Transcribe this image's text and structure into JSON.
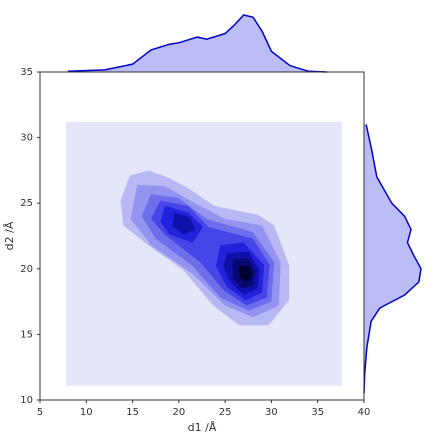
{
  "chart_data": {
    "type": "kde2d",
    "xlabel": "d1 /Å",
    "ylabel": "d2 /Å",
    "xlim": [
      5,
      40
    ],
    "ylim": [
      10,
      35
    ],
    "xticks": [
      5,
      10,
      15,
      20,
      25,
      30,
      35,
      40
    ],
    "yticks": [
      10,
      15,
      20,
      25,
      30,
      35
    ],
    "levels": [
      {
        "color": "#e6e6fa",
        "polygons": [
          {
            "x": [
              7.8,
              37.6,
              37.6,
              7.8
            ],
            "y": [
              11.1,
              11.1,
              31.2,
              31.2
            ]
          }
        ]
      },
      {
        "color": "#b8b8f4",
        "polygons": [
          {
            "x": [
              14.7,
              16.8,
              19,
              21.1,
              23.8,
              28.6,
              30.3,
              31.9,
              31.9,
              29.7,
              26.5,
              23.7,
              20.5,
              16.7,
              14,
              13.7
            ],
            "y": [
              27.1,
              27.5,
              26.9,
              26.1,
              24.8,
              24.1,
              23.3,
              20.3,
              17.6,
              15.7,
              15.7,
              17.2,
              19.9,
              21.8,
              23.3,
              25.2
            ]
          }
        ]
      },
      {
        "color": "#9494f0",
        "polygons": [
          {
            "x": [
              15.5,
              18.5,
              22,
              25,
              29,
              31,
              30.8,
              28,
              25,
              21.5,
              17,
              14.8
            ],
            "y": [
              26.4,
              26.3,
              24.9,
              23.8,
              23.3,
              20.5,
              17.2,
              16.3,
              17.2,
              19.6,
              21.8,
              23.8
            ]
          }
        ]
      },
      {
        "color": "#6e6eec",
        "polygons": [
          {
            "x": [
              17,
              20,
              23,
              28,
              30.3,
              30,
              27.5,
              24.5,
              21.5,
              17.5,
              16
            ],
            "y": [
              25.7,
              25.4,
              23.8,
              22.8,
              20.5,
              17.5,
              16.8,
              17.8,
              20.2,
              22.3,
              24
            ]
          }
        ]
      },
      {
        "color": "#4646e8",
        "polygons": [
          {
            "x": [
              18,
              21,
              23.2,
              28,
              29.8,
              29.5,
              27.3,
              24.8,
              22.3,
              18.5,
              17
            ],
            "y": [
              25.2,
              24.8,
              23.2,
              22.3,
              20.3,
              17.8,
              17.2,
              18.4,
              20.5,
              22.6,
              23.8
            ]
          }
        ]
      },
      {
        "color": "#2222dc",
        "polygons": [
          {
            "x": [
              18.5,
              21,
              22.6,
              21.5,
              19,
              18
            ],
            "y": [
              24.8,
              24.3,
              23.2,
              22,
              22.6,
              23.6
            ]
          },
          {
            "x": [
              24.5,
              27,
              29.2,
              29,
              27.2,
              25.2,
              24
            ],
            "y": [
              21.8,
              22,
              20.3,
              18.2,
              17.6,
              18.6,
              20.2
            ]
          }
        ]
      },
      {
        "color": "#1010aa",
        "polygons": [
          {
            "x": [
              19.5,
              21.2,
              21.8,
              20.5,
              19.3
            ],
            "y": [
              24.3,
              23.9,
              23,
              22.6,
              23.3
            ]
          },
          {
            "x": [
              25.2,
              27.5,
              28.7,
              28.5,
              27,
              25.5,
              24.8
            ],
            "y": [
              21.2,
              21.3,
              20,
              18.5,
              18,
              19,
              20.2
            ]
          }
        ]
      },
      {
        "color": "#080872",
        "polygons": [
          {
            "x": [
              25.8,
              27.5,
              28.3,
              28,
              26.8,
              25.8
            ],
            "y": [
              20.7,
              20.8,
              19.8,
              18.7,
              18.5,
              19.3
            ]
          }
        ]
      },
      {
        "color": "#00002e",
        "polygons": [
          {
            "x": [
              26.5,
              27.6,
              27.9,
              27.3,
              26.6
            ],
            "y": [
              20.2,
              20.2,
              19.5,
              19,
              19.3
            ]
          }
        ]
      }
    ],
    "marginal_x": {
      "color": "#0000cc",
      "fill": "#bcbcf6",
      "x": [
        8,
        12,
        15,
        17,
        19,
        20,
        22,
        23,
        25,
        26,
        27,
        28,
        29,
        30,
        32,
        34,
        36
      ],
      "values": [
        0.001,
        0.003,
        0.011,
        0.031,
        0.039,
        0.041,
        0.049,
        0.046,
        0.054,
        0.066,
        0.08,
        0.077,
        0.057,
        0.029,
        0.009,
        0.001,
        0.0
      ]
    },
    "marginal_y": {
      "color": "#0000cc",
      "fill": "#bcbcf6",
      "y": [
        31,
        29,
        27,
        25,
        24,
        23,
        22,
        21,
        20,
        19,
        18,
        17,
        16,
        14,
        12,
        10.5
      ],
      "values": [
        0.003,
        0.011,
        0.018,
        0.039,
        0.057,
        0.066,
        0.061,
        0.07,
        0.08,
        0.077,
        0.057,
        0.022,
        0.01,
        0.004,
        0.001,
        0.0
      ]
    }
  }
}
